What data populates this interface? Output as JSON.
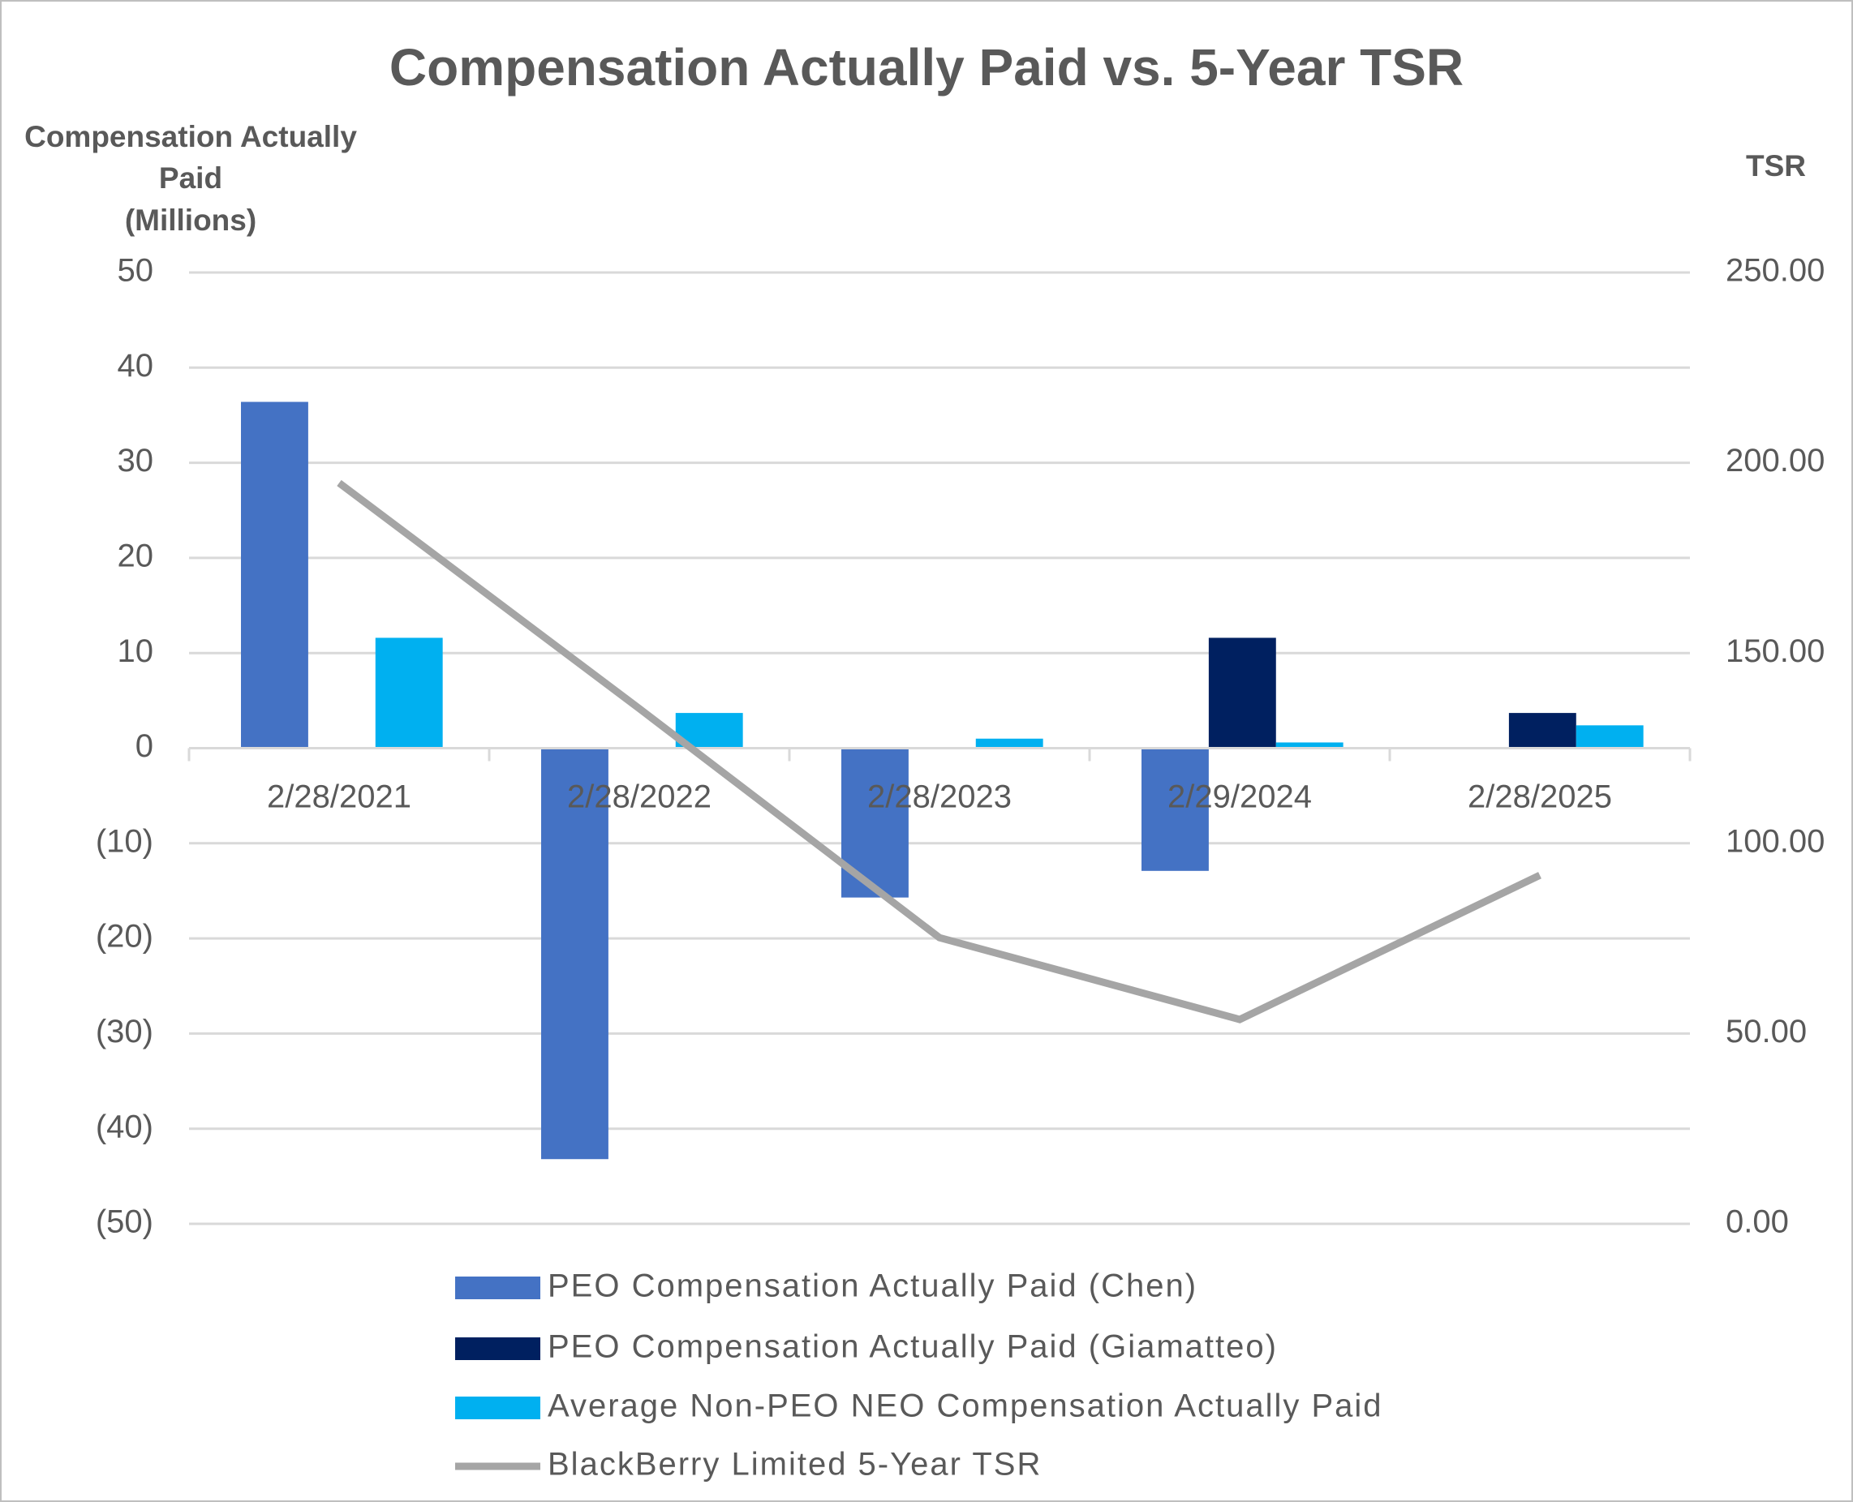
{
  "chart_data": {
    "type": "bar-line",
    "title": "Compensation Actually Paid vs. 5-Year TSR",
    "ylabel": [
      "Compensation Actually",
      "Paid",
      "(Millions)"
    ],
    "y2label": "TSR",
    "categories": [
      "2/28/2021",
      "2/28/2022",
      "2/28/2023",
      "2/29/2024",
      "2/28/2025"
    ],
    "series": [
      {
        "name": "PEO Compensation Actually Paid (Chen)",
        "color": "#4472c4",
        "type": "bar",
        "values": [
          36.4,
          -43.2,
          -15.7,
          -12.9,
          null
        ]
      },
      {
        "name": "PEO Compensation Actually Paid (Giamatteo)",
        "color": "#002060",
        "type": "bar",
        "values": [
          null,
          null,
          null,
          11.6,
          3.7
        ]
      },
      {
        "name": "Average Non-PEO NEO Compensation Actually Paid",
        "color": "#00b0f0",
        "type": "bar",
        "values": [
          11.6,
          3.7,
          1.0,
          0.6,
          2.4
        ]
      },
      {
        "name": "BlackBerry Limited 5-Year TSR",
        "color": "#a5a5a5",
        "type": "line",
        "axis": "y2",
        "values": [
          194.7,
          135.4,
          75.2,
          53.7,
          91.6
        ]
      }
    ],
    "ylim": [
      -50,
      50
    ],
    "yticks": [
      {
        "value": -50,
        "label": "(50)"
      },
      {
        "value": -40,
        "label": "(40)"
      },
      {
        "value": -30,
        "label": "(30)"
      },
      {
        "value": -20,
        "label": "(20)"
      },
      {
        "value": -10,
        "label": "(10)"
      },
      0,
      10,
      20,
      30,
      40,
      50
    ],
    "y2lim": [
      0,
      250
    ],
    "y2ticks": [
      {
        "value": 0,
        "label": "0.00"
      },
      {
        "value": 50,
        "label": "50.00"
      },
      {
        "value": 100,
        "label": "100.00"
      },
      {
        "value": 150,
        "label": "150.00"
      },
      {
        "value": 200,
        "label": "200.00"
      },
      {
        "value": 250,
        "label": "250.00"
      }
    ],
    "grid": true
  }
}
